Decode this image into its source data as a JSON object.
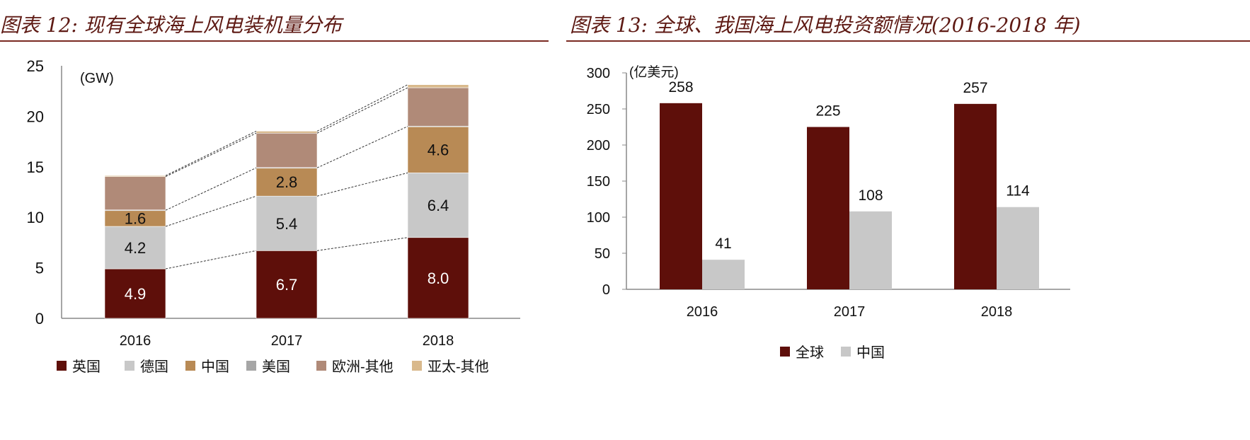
{
  "chart_data": [
    {
      "type": "bar",
      "stacked": true,
      "title": "图表 12: 现有全球海上风电装机量分布",
      "ylabel": "(GW)",
      "categories": [
        "2016",
        "2017",
        "2018"
      ],
      "ylim": [
        0,
        25
      ],
      "yticks": [
        "0",
        "5",
        "10",
        "15",
        "20",
        "25"
      ],
      "grid": false,
      "legend": "bottom",
      "series": [
        {
          "name": "英国",
          "color": "#5e0f0a",
          "values": [
            4.9,
            6.7,
            8.0
          ],
          "labels": [
            "4.9",
            "6.7",
            "8.0"
          ]
        },
        {
          "name": "德国",
          "color": "#c8c8c8",
          "values": [
            4.2,
            5.4,
            6.4
          ],
          "labels": [
            "4.2",
            "5.4",
            "6.4"
          ]
        },
        {
          "name": "中国",
          "color": "#b88a55",
          "values": [
            1.6,
            2.8,
            4.6
          ],
          "labels": [
            "1.6",
            "2.8",
            "4.6"
          ]
        },
        {
          "name": "美国",
          "color": "#a6a6a6",
          "values": [
            0.03,
            0.03,
            0.03
          ]
        },
        {
          "name": "欧洲-其他",
          "color": "#b08a78",
          "values": [
            3.3,
            3.4,
            3.8
          ]
        },
        {
          "name": "亚太-其他",
          "color": "#d9b98c",
          "values": [
            0.1,
            0.2,
            0.3
          ]
        }
      ]
    },
    {
      "type": "bar",
      "title": "图表 13: 全球、我国海上风电投资额情况(2016-2018 年)",
      "ylabel": "(亿美元)",
      "categories": [
        "2016",
        "2017",
        "2018"
      ],
      "ylim": [
        0,
        300
      ],
      "yticks": [
        "0",
        "50",
        "100",
        "150",
        "200",
        "250",
        "300"
      ],
      "grid": false,
      "legend": "bottom",
      "series": [
        {
          "name": "全球",
          "color": "#5e0f0a",
          "values": [
            258,
            225,
            257
          ]
        },
        {
          "name": "中国",
          "color": "#c8c8c8",
          "values": [
            41,
            108,
            114
          ]
        }
      ]
    }
  ]
}
